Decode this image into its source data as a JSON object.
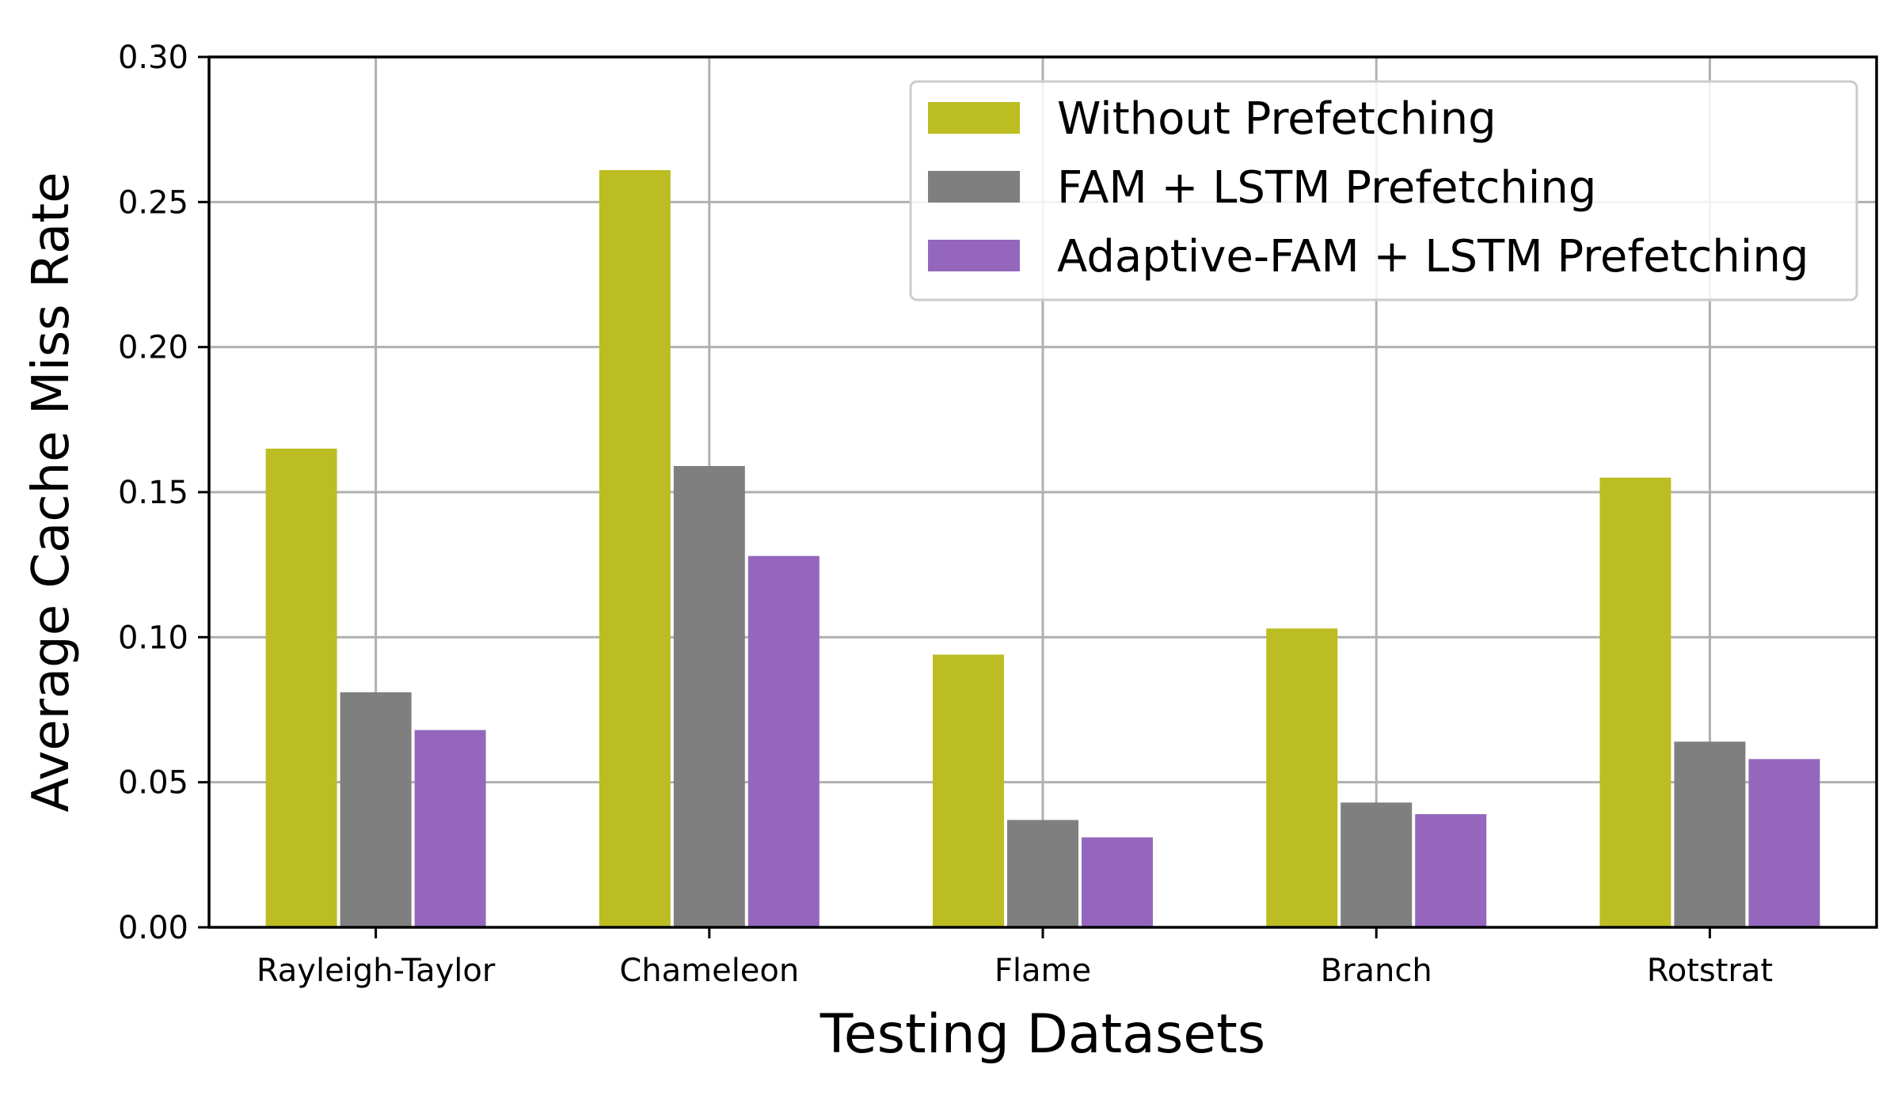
{
  "chart_data": {
    "type": "bar",
    "title": "",
    "xlabel": "Testing Datasets",
    "ylabel": "Average Cache Miss Rate",
    "ylim": [
      0,
      0.3
    ],
    "yticks": [
      0.0,
      0.05,
      0.1,
      0.15,
      0.2,
      0.25,
      0.3
    ],
    "ytick_labels": [
      "0.00",
      "0.05",
      "0.10",
      "0.15",
      "0.20",
      "0.25",
      "0.30"
    ],
    "grid": true,
    "legend_position": "top-right",
    "categories": [
      "Rayleigh-Taylor",
      "Chameleon",
      "Flame",
      "Branch",
      "Rotstrat"
    ],
    "series": [
      {
        "name": "Without Prefetching",
        "color": "#bcbd22",
        "values": [
          0.165,
          0.261,
          0.094,
          0.103,
          0.155
        ]
      },
      {
        "name": "FAM + LSTM Prefetching",
        "color": "#7f7f7f",
        "values": [
          0.081,
          0.159,
          0.037,
          0.043,
          0.064
        ]
      },
      {
        "name": "Adaptive-FAM + LSTM Prefetching",
        "color": "#9467bd",
        "values": [
          0.068,
          0.128,
          0.031,
          0.039,
          0.058
        ]
      }
    ]
  }
}
